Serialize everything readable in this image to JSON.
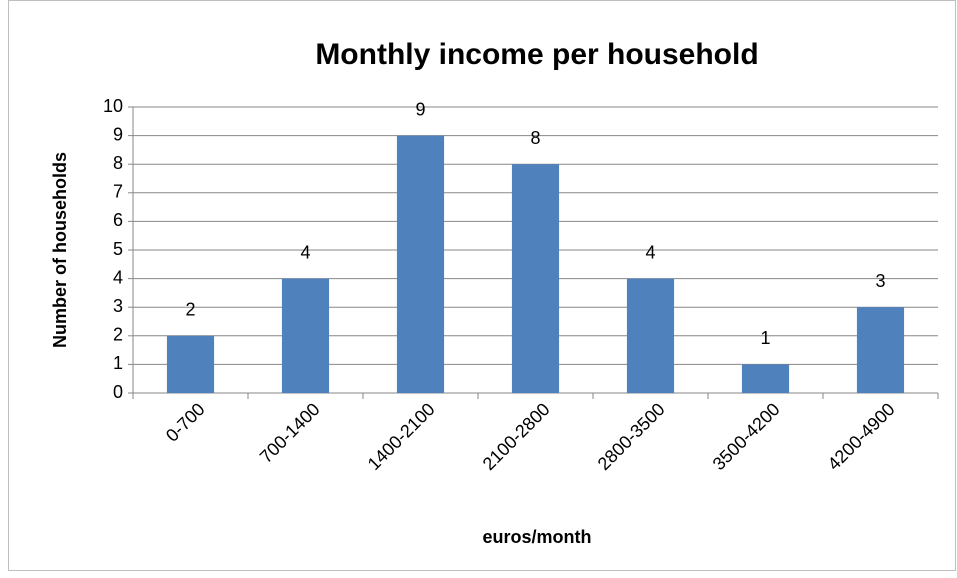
{
  "chart_data": {
    "type": "bar",
    "title": "Monthly income per household",
    "x_label": "euros/month",
    "y_label": "Number of households",
    "categories": [
      "0-700",
      "700-1400",
      "1400-2100",
      "2100-2800",
      "2800-3500",
      "3500-4200",
      "4200-4900"
    ],
    "values": [
      2,
      4,
      9,
      8,
      4,
      1,
      3
    ],
    "color": "#4f81bd",
    "ylim": [
      0,
      10
    ],
    "yticks": [
      0,
      1,
      2,
      3,
      4,
      5,
      6,
      7,
      8,
      9,
      10
    ],
    "grid": true,
    "data_labels": true
  }
}
